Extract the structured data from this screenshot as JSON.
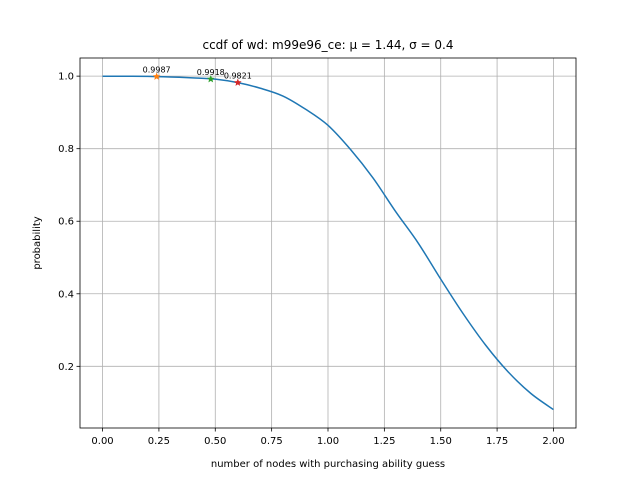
{
  "chart_data": {
    "type": "line",
    "title": "ccdf of wd: m99e96_ce: μ = 1.44, σ = 0.4",
    "xlabel": "number of nodes with purchasing ability guess",
    "ylabel": "probability",
    "xlim": [
      -0.1,
      2.1
    ],
    "ylim": [
      0.03,
      1.05
    ],
    "xticks": [
      0.0,
      0.25,
      0.5,
      0.75,
      1.0,
      1.25,
      1.5,
      1.75,
      2.0
    ],
    "xtick_labels": [
      "0.00",
      "0.25",
      "0.50",
      "0.75",
      "1.00",
      "1.25",
      "1.50",
      "1.75",
      "2.00"
    ],
    "yticks": [
      0.2,
      0.4,
      0.6,
      0.8,
      1.0
    ],
    "ytick_labels": [
      "0.2",
      "0.4",
      "0.6",
      "0.8",
      "1.0"
    ],
    "grid": true,
    "series": [
      {
        "color": "#1f77b4",
        "x": [
          0.0,
          0.1,
          0.2,
          0.3,
          0.4,
          0.5,
          0.6,
          0.7,
          0.8,
          0.9,
          1.0,
          1.1,
          1.2,
          1.3,
          1.4,
          1.5,
          1.6,
          1.7,
          1.8,
          1.9,
          2.0
        ],
        "y": [
          0.9997,
          0.9996,
          0.9993,
          0.9977,
          0.9953,
          0.9918,
          0.9821,
          0.9666,
          0.9452,
          0.9089,
          0.8643,
          0.7977,
          0.719,
          0.6267,
          0.5399,
          0.4404,
          0.3446,
          0.2578,
          0.1841,
          0.1251,
          0.0808
        ]
      }
    ],
    "markers": [
      {
        "x": 0.24,
        "y": 0.9987,
        "label": "0.9987",
        "color": "#ff7f0e"
      },
      {
        "x": 0.48,
        "y": 0.9918,
        "label": "0.9918",
        "color": "#2ca02c"
      },
      {
        "x": 0.6,
        "y": 0.9821,
        "label": "0.9821",
        "color": "#d62728"
      }
    ]
  }
}
